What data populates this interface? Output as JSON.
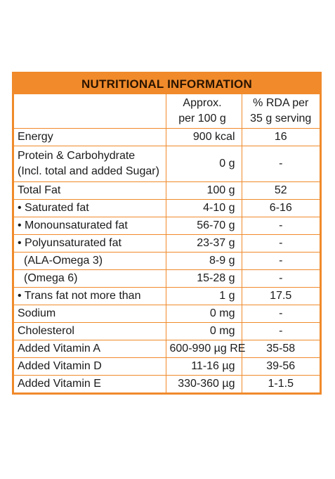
{
  "title": "NUTRITIONAL INFORMATION",
  "header": {
    "col2_line1": "Approx.",
    "col2_line2": "per 100 g",
    "col3_line1": "% RDA per",
    "col3_line2": "35 g serving"
  },
  "rows": [
    {
      "name": "Energy",
      "value": "900 kcal",
      "rda": "16"
    },
    {
      "name_line1": "Protein & Carbohydrate",
      "name_line2": "(Incl. total and added Sugar)",
      "value": "0 g",
      "rda": "-"
    },
    {
      "name": "Total Fat",
      "value": "100 g",
      "rda": "52"
    },
    {
      "name": "• Saturated fat",
      "value": "4-10 g",
      "rda": "6-16"
    },
    {
      "name": "• Monounsaturated fat",
      "value": "56-70 g",
      "rda": "-"
    },
    {
      "name": "• Polyunsaturated fat",
      "value": "23-37 g",
      "rda": "-"
    },
    {
      "name": "(ALA-Omega 3)",
      "value": "8-9 g",
      "rda": "-"
    },
    {
      "name": "(Omega 6)",
      "value": "15-28 g",
      "rda": "-"
    },
    {
      "name": "• Trans fat not more than",
      "value": "1 g",
      "rda": "17.5"
    },
    {
      "name": "Sodium",
      "value": "0 mg",
      "rda": "-"
    },
    {
      "name": "Cholesterol",
      "value": "0 mg",
      "rda": "-"
    },
    {
      "name": "Added Vitamin A",
      "value": "600-990 µg RE",
      "rda": "35-58"
    },
    {
      "name": "Added Vitamin D",
      "value": "11-16 µg",
      "rda": "39-56"
    },
    {
      "name": "Added Vitamin E",
      "value": "330-360 µg",
      "rda": "1-1.5"
    }
  ],
  "colors": {
    "accent": "#f08a2b"
  }
}
